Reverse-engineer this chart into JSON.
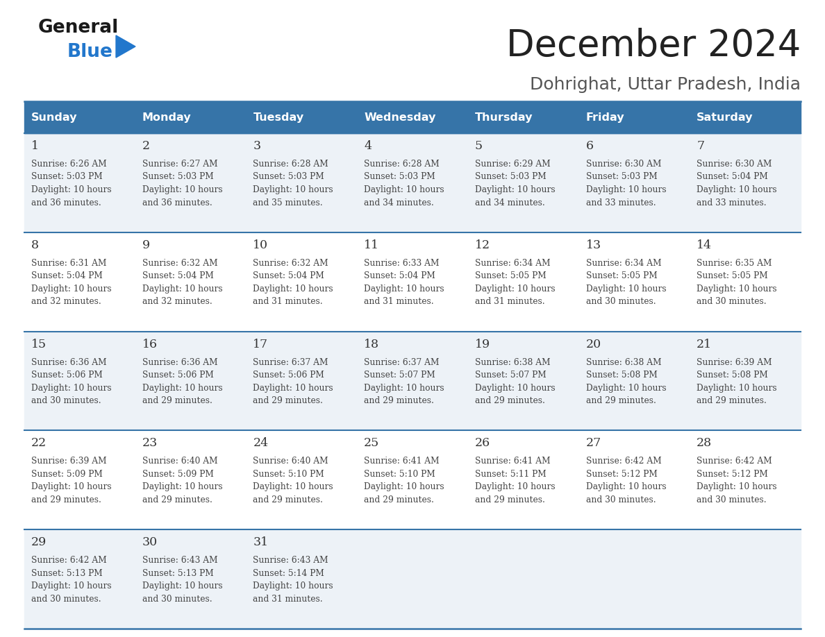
{
  "title": "December 2024",
  "subtitle": "Dohrighat, Uttar Pradesh, India",
  "header_bg_color": "#3674a8",
  "header_text_color": "#ffffff",
  "days_of_week": [
    "Sunday",
    "Monday",
    "Tuesday",
    "Wednesday",
    "Thursday",
    "Friday",
    "Saturday"
  ],
  "row_bg_even": "#edf2f7",
  "row_bg_odd": "#ffffff",
  "border_color": "#3674a8",
  "day_number_color": "#333333",
  "info_text_color": "#444444",
  "calendar_data": [
    [
      {
        "day": 1,
        "sunrise": "6:26 AM",
        "sunset": "5:03 PM",
        "daylight": "10 hours and 36 minutes."
      },
      {
        "day": 2,
        "sunrise": "6:27 AM",
        "sunset": "5:03 PM",
        "daylight": "10 hours and 36 minutes."
      },
      {
        "day": 3,
        "sunrise": "6:28 AM",
        "sunset": "5:03 PM",
        "daylight": "10 hours and 35 minutes."
      },
      {
        "day": 4,
        "sunrise": "6:28 AM",
        "sunset": "5:03 PM",
        "daylight": "10 hours and 34 minutes."
      },
      {
        "day": 5,
        "sunrise": "6:29 AM",
        "sunset": "5:03 PM",
        "daylight": "10 hours and 34 minutes."
      },
      {
        "day": 6,
        "sunrise": "6:30 AM",
        "sunset": "5:03 PM",
        "daylight": "10 hours and 33 minutes."
      },
      {
        "day": 7,
        "sunrise": "6:30 AM",
        "sunset": "5:04 PM",
        "daylight": "10 hours and 33 minutes."
      }
    ],
    [
      {
        "day": 8,
        "sunrise": "6:31 AM",
        "sunset": "5:04 PM",
        "daylight": "10 hours and 32 minutes."
      },
      {
        "day": 9,
        "sunrise": "6:32 AM",
        "sunset": "5:04 PM",
        "daylight": "10 hours and 32 minutes."
      },
      {
        "day": 10,
        "sunrise": "6:32 AM",
        "sunset": "5:04 PM",
        "daylight": "10 hours and 31 minutes."
      },
      {
        "day": 11,
        "sunrise": "6:33 AM",
        "sunset": "5:04 PM",
        "daylight": "10 hours and 31 minutes."
      },
      {
        "day": 12,
        "sunrise": "6:34 AM",
        "sunset": "5:05 PM",
        "daylight": "10 hours and 31 minutes."
      },
      {
        "day": 13,
        "sunrise": "6:34 AM",
        "sunset": "5:05 PM",
        "daylight": "10 hours and 30 minutes."
      },
      {
        "day": 14,
        "sunrise": "6:35 AM",
        "sunset": "5:05 PM",
        "daylight": "10 hours and 30 minutes."
      }
    ],
    [
      {
        "day": 15,
        "sunrise": "6:36 AM",
        "sunset": "5:06 PM",
        "daylight": "10 hours and 30 minutes."
      },
      {
        "day": 16,
        "sunrise": "6:36 AM",
        "sunset": "5:06 PM",
        "daylight": "10 hours and 29 minutes."
      },
      {
        "day": 17,
        "sunrise": "6:37 AM",
        "sunset": "5:06 PM",
        "daylight": "10 hours and 29 minutes."
      },
      {
        "day": 18,
        "sunrise": "6:37 AM",
        "sunset": "5:07 PM",
        "daylight": "10 hours and 29 minutes."
      },
      {
        "day": 19,
        "sunrise": "6:38 AM",
        "sunset": "5:07 PM",
        "daylight": "10 hours and 29 minutes."
      },
      {
        "day": 20,
        "sunrise": "6:38 AM",
        "sunset": "5:08 PM",
        "daylight": "10 hours and 29 minutes."
      },
      {
        "day": 21,
        "sunrise": "6:39 AM",
        "sunset": "5:08 PM",
        "daylight": "10 hours and 29 minutes."
      }
    ],
    [
      {
        "day": 22,
        "sunrise": "6:39 AM",
        "sunset": "5:09 PM",
        "daylight": "10 hours and 29 minutes."
      },
      {
        "day": 23,
        "sunrise": "6:40 AM",
        "sunset": "5:09 PM",
        "daylight": "10 hours and 29 minutes."
      },
      {
        "day": 24,
        "sunrise": "6:40 AM",
        "sunset": "5:10 PM",
        "daylight": "10 hours and 29 minutes."
      },
      {
        "day": 25,
        "sunrise": "6:41 AM",
        "sunset": "5:10 PM",
        "daylight": "10 hours and 29 minutes."
      },
      {
        "day": 26,
        "sunrise": "6:41 AM",
        "sunset": "5:11 PM",
        "daylight": "10 hours and 29 minutes."
      },
      {
        "day": 27,
        "sunrise": "6:42 AM",
        "sunset": "5:12 PM",
        "daylight": "10 hours and 30 minutes."
      },
      {
        "day": 28,
        "sunrise": "6:42 AM",
        "sunset": "5:12 PM",
        "daylight": "10 hours and 30 minutes."
      }
    ],
    [
      {
        "day": 29,
        "sunrise": "6:42 AM",
        "sunset": "5:13 PM",
        "daylight": "10 hours and 30 minutes."
      },
      {
        "day": 30,
        "sunrise": "6:43 AM",
        "sunset": "5:13 PM",
        "daylight": "10 hours and 30 minutes."
      },
      {
        "day": 31,
        "sunrise": "6:43 AM",
        "sunset": "5:14 PM",
        "daylight": "10 hours and 31 minutes."
      },
      null,
      null,
      null,
      null
    ]
  ],
  "logo_general_color": "#1a1a1a",
  "logo_blue_color": "#2277cc",
  "logo_triangle_color": "#2277cc",
  "fig_width": 11.88,
  "fig_height": 9.18,
  "dpi": 100
}
